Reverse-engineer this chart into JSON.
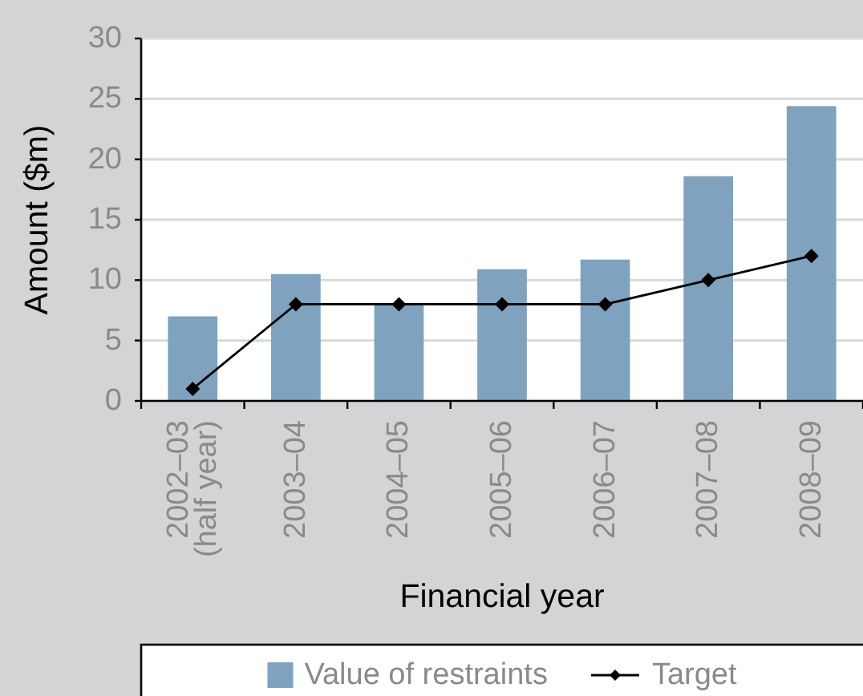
{
  "chart_data": {
    "type": "bar",
    "xlabel": "Financial year",
    "ylabel": "Amount ($m)",
    "categories": [
      "2002–03\n(half year)",
      "2003–04",
      "2004–05",
      "2005–06",
      "2006–07",
      "2007–08",
      "2008–09"
    ],
    "series": [
      {
        "name": "Value of restraints",
        "color": "#7fa2be",
        "values": [
          7.0,
          10.5,
          8.0,
          10.9,
          11.7,
          18.6,
          24.4
        ]
      },
      {
        "name": "Target",
        "type": "line",
        "color": "#000000",
        "values": [
          1,
          8,
          8,
          8,
          8,
          10,
          12
        ]
      }
    ],
    "ylim": [
      0,
      30
    ],
    "yticks": [
      0,
      5,
      10,
      15,
      20,
      25,
      30
    ],
    "grid": "y",
    "legend": "bottom",
    "marker": "diamond"
  }
}
